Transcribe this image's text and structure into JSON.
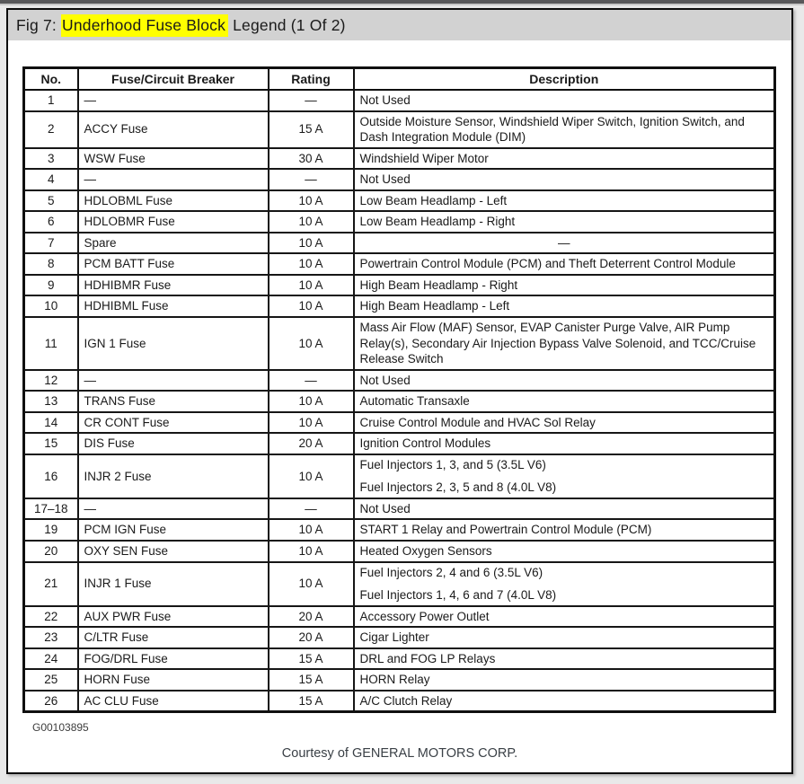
{
  "page": {
    "title_prefix": "Fig 7: ",
    "title_highlight": "Underhood Fuse Block",
    "title_suffix": " Legend (1 Of 2)",
    "figure_code": "G00103895",
    "courtesy": "Courtesy of GENERAL MOTORS CORP.",
    "highlight_color": "#ffff00",
    "titlebar_bg": "#d2d2d2",
    "accent_dark_strip": "#58585a"
  },
  "table": {
    "headers": [
      "No.",
      "Fuse/Circuit Breaker",
      "Rating",
      "Description"
    ],
    "rows": [
      {
        "no": "1",
        "fuse": "—",
        "rating": "—",
        "desc": [
          "Not Used"
        ]
      },
      {
        "no": "2",
        "fuse": "ACCY Fuse",
        "rating": "15 A",
        "desc": [
          "Outside Moisture Sensor, Windshield Wiper Switch, Ignition Switch, and Dash Integration Module (DIM)"
        ]
      },
      {
        "no": "3",
        "fuse": "WSW Fuse",
        "rating": "30 A",
        "desc": [
          "Windshield Wiper Motor"
        ]
      },
      {
        "no": "4",
        "fuse": "—",
        "rating": "—",
        "desc": [
          "Not Used"
        ]
      },
      {
        "no": "5",
        "fuse": "HDLOBML Fuse",
        "rating": "10 A",
        "desc": [
          "Low Beam Headlamp - Left"
        ]
      },
      {
        "no": "6",
        "fuse": "HDLOBMR Fuse",
        "rating": "10 A",
        "desc": [
          "Low Beam Headlamp - Right"
        ]
      },
      {
        "no": "7",
        "fuse": "Spare",
        "rating": "10 A",
        "desc": [
          "—"
        ],
        "desc_center": true
      },
      {
        "no": "8",
        "fuse": "PCM BATT Fuse",
        "rating": "10 A",
        "desc": [
          "Powertrain Control Module (PCM) and Theft Deterrent Control Module"
        ]
      },
      {
        "no": "9",
        "fuse": "HDHIBMR Fuse",
        "rating": "10 A",
        "desc": [
          "High Beam Headlamp - Right"
        ]
      },
      {
        "no": "10",
        "fuse": "HDHIBML Fuse",
        "rating": "10 A",
        "desc": [
          "High Beam Headlamp - Left"
        ]
      },
      {
        "no": "11",
        "fuse": "IGN 1 Fuse",
        "rating": "10 A",
        "desc": [
          "Mass Air Flow (MAF) Sensor, EVAP Canister Purge Valve, AIR Pump Relay(s), Secondary Air Injection Bypass Valve Solenoid, and TCC/Cruise Release Switch"
        ]
      },
      {
        "no": "12",
        "fuse": "—",
        "rating": "—",
        "desc": [
          "Not Used"
        ]
      },
      {
        "no": "13",
        "fuse": "TRANS Fuse",
        "rating": "10 A",
        "desc": [
          "Automatic Transaxle"
        ]
      },
      {
        "no": "14",
        "fuse": "CR CONT Fuse",
        "rating": "10 A",
        "desc": [
          "Cruise Control Module and HVAC Sol Relay"
        ]
      },
      {
        "no": "15",
        "fuse": "DIS Fuse",
        "rating": "20 A",
        "desc": [
          "Ignition Control Modules"
        ]
      },
      {
        "no": "16",
        "fuse": "INJR 2 Fuse",
        "rating": "10 A",
        "desc": [
          "Fuel Injectors 1, 3, and 5 (3.5L V6)",
          "Fuel Injectors 2, 3, 5 and 8 (4.0L V8)"
        ]
      },
      {
        "no": "17–18",
        "fuse": "—",
        "rating": "—",
        "desc": [
          "Not Used"
        ]
      },
      {
        "no": "19",
        "fuse": "PCM IGN Fuse",
        "rating": "10 A",
        "desc": [
          "START 1 Relay and Powertrain Control Module (PCM)"
        ]
      },
      {
        "no": "20",
        "fuse": "OXY SEN Fuse",
        "rating": "10 A",
        "desc": [
          "Heated Oxygen Sensors"
        ]
      },
      {
        "no": "21",
        "fuse": "INJR 1 Fuse",
        "rating": "10 A",
        "desc": [
          "Fuel Injectors 2, 4 and 6 (3.5L V6)",
          "Fuel Injectors 1, 4, 6 and 7 (4.0L V8)"
        ]
      },
      {
        "no": "22",
        "fuse": "AUX PWR Fuse",
        "rating": "20 A",
        "desc": [
          "Accessory Power Outlet"
        ]
      },
      {
        "no": "23",
        "fuse": "C/LTR Fuse",
        "rating": "20 A",
        "desc": [
          "Cigar Lighter"
        ]
      },
      {
        "no": "24",
        "fuse": "FOG/DRL Fuse",
        "rating": "15 A",
        "desc": [
          "DRL and FOG LP Relays"
        ]
      },
      {
        "no": "25",
        "fuse": "HORN Fuse",
        "rating": "15 A",
        "desc": [
          "HORN Relay"
        ]
      },
      {
        "no": "26",
        "fuse": "AC CLU Fuse",
        "rating": "15 A",
        "desc": [
          "A/C Clutch Relay"
        ]
      }
    ]
  }
}
